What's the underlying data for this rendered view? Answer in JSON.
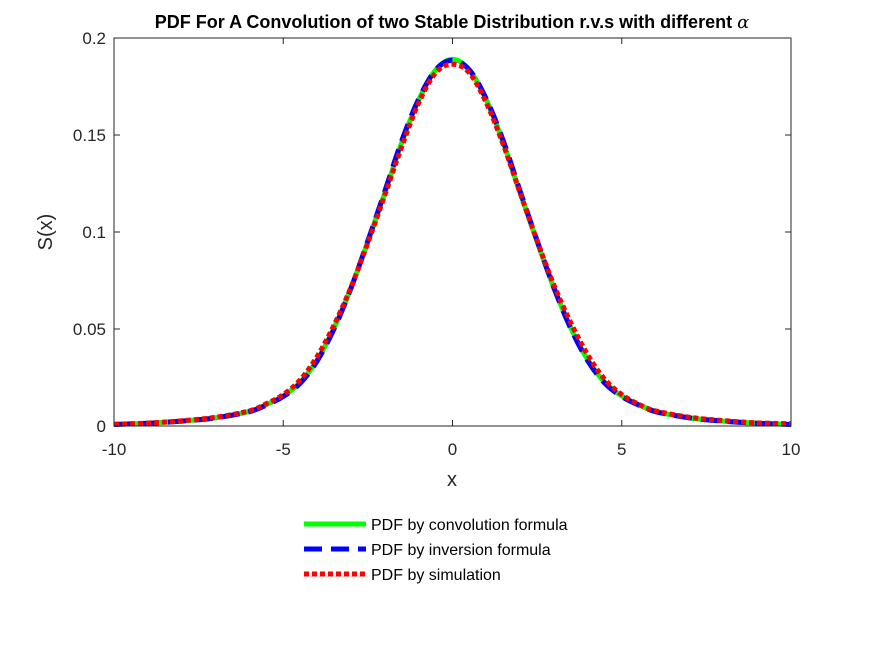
{
  "chart_data": {
    "type": "line",
    "title": "PDF For A Convolution of two Stable Distribution r.v.s with different ",
    "title_symbol": "α",
    "xlabel": "x",
    "ylabel": "S(x)",
    "xlim": [
      -10,
      10
    ],
    "ylim": [
      0,
      0.2
    ],
    "x_ticks": [
      -10,
      -5,
      0,
      5,
      10
    ],
    "x_tick_labels": [
      "-10",
      "-5",
      "0",
      "5",
      "10"
    ],
    "y_ticks": [
      0,
      0.05,
      0.1,
      0.15,
      0.2
    ],
    "y_tick_labels": [
      "0",
      "0.05",
      "0.1",
      "0.15",
      "0.2"
    ],
    "grid": false,
    "legend_position": "bottom-outside",
    "x": [
      -10,
      -9,
      -8,
      -7,
      -6,
      -5.5,
      -5,
      -4.5,
      -4,
      -3.5,
      -3,
      -2.5,
      -2,
      -1.5,
      -1,
      -0.5,
      0,
      0.5,
      1,
      1.5,
      2,
      2.5,
      3,
      3.5,
      4,
      4.5,
      5,
      5.5,
      6,
      7,
      8,
      9,
      10
    ],
    "series": [
      {
        "name": "PDF by convolution formula",
        "color": "#00ff00",
        "style": "solid",
        "values": [
          0.0008,
          0.0014,
          0.0025,
          0.0042,
          0.0075,
          0.011,
          0.0155,
          0.0225,
          0.034,
          0.0505,
          0.071,
          0.095,
          0.12,
          0.146,
          0.168,
          0.1835,
          0.189,
          0.1835,
          0.168,
          0.146,
          0.12,
          0.095,
          0.071,
          0.0505,
          0.034,
          0.0225,
          0.0155,
          0.011,
          0.0075,
          0.0042,
          0.0025,
          0.0014,
          0.0008
        ]
      },
      {
        "name": "PDF by inversion formula",
        "color": "#0000ff",
        "style": "dashed",
        "values": [
          0.0008,
          0.0014,
          0.0025,
          0.0042,
          0.0074,
          0.0108,
          0.0152,
          0.022,
          0.0335,
          0.05,
          0.071,
          0.0955,
          0.121,
          0.147,
          0.1685,
          0.1835,
          0.1885,
          0.1835,
          0.1685,
          0.147,
          0.121,
          0.0955,
          0.071,
          0.05,
          0.0335,
          0.022,
          0.0152,
          0.0108,
          0.0074,
          0.0042,
          0.0025,
          0.0014,
          0.0008
        ]
      },
      {
        "name": "PDF by simulation",
        "color": "#ff0000",
        "style": "dotted",
        "values": [
          0.0009,
          0.0015,
          0.0027,
          0.0045,
          0.0078,
          0.0115,
          0.0162,
          0.0238,
          0.0358,
          0.052,
          0.0715,
          0.0945,
          0.119,
          0.144,
          0.1665,
          0.182,
          0.1865,
          0.182,
          0.1665,
          0.145,
          0.12,
          0.0955,
          0.0725,
          0.053,
          0.0365,
          0.024,
          0.0162,
          0.0112,
          0.0078,
          0.0045,
          0.0028,
          0.0016,
          0.0012
        ]
      }
    ]
  }
}
